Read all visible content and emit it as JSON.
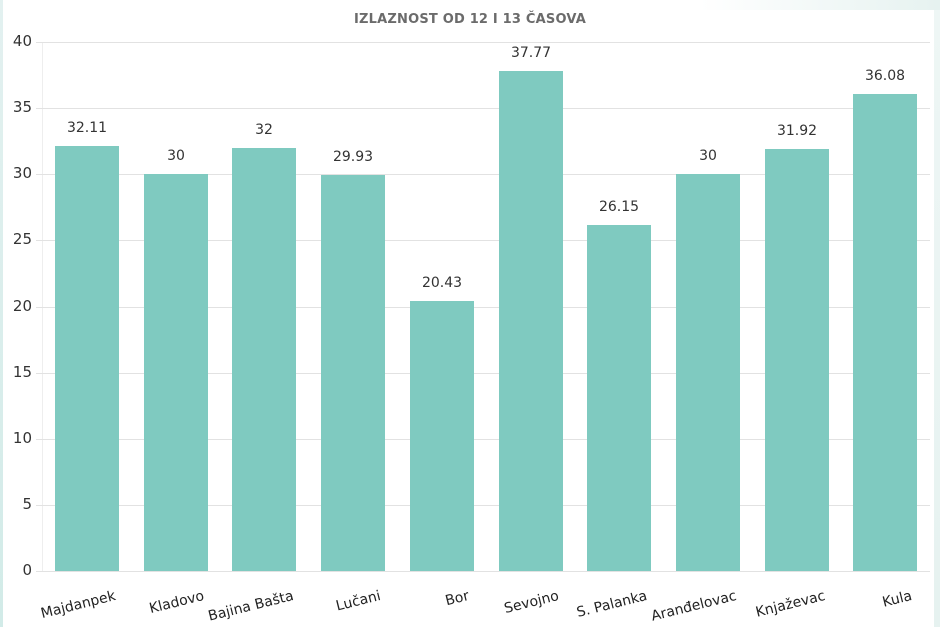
{
  "title": "IZLAZNOST OD 12 I 13 ČASOVA",
  "colors": {
    "bar": "#7fcac0",
    "grid": "#e2e2e2",
    "title": "#6b6b6b",
    "text": "#333333"
  },
  "chart_data": {
    "type": "bar",
    "title": "IZLAZNOST OD 12 I 13 ČASOVA",
    "xlabel": "",
    "ylabel": "",
    "ylim": [
      0,
      40
    ],
    "yticks": [
      0,
      5,
      10,
      15,
      20,
      25,
      30,
      35,
      40
    ],
    "grid": true,
    "legend": null,
    "data_labels": true,
    "categories": [
      "Majdanpek",
      "Kladovo",
      "Bajina Bašta",
      "Lučani",
      "Bor",
      "Sevojno",
      "S. Palanka",
      "Aranđelovac",
      "Knjaževac",
      "Kula"
    ],
    "values": [
      32.11,
      30,
      32,
      29.93,
      20.43,
      37.77,
      26.15,
      30,
      31.92,
      36.08
    ],
    "value_labels": [
      "32.11",
      "30",
      "32",
      "29.93",
      "20.43",
      "37.77",
      "26.15",
      "30",
      "31.92",
      "36.08"
    ]
  }
}
